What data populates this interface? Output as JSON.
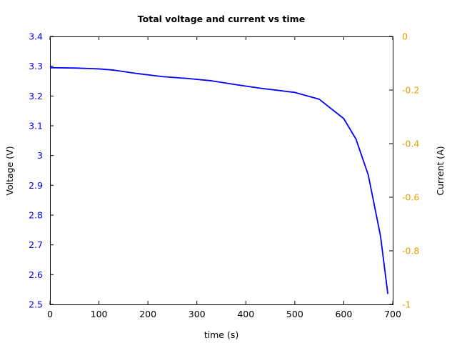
{
  "chart_data": {
    "type": "line",
    "title": "Total voltage and current vs time",
    "xlabel": "time (s)",
    "ylabel_left": "Voltage (V)",
    "ylabel_right": "Current (A)",
    "xlim": [
      0,
      700
    ],
    "ylim_left": [
      2.5,
      3.4
    ],
    "ylim_right": [
      -1,
      0
    ],
    "x_ticks": [
      "0",
      "100",
      "200",
      "300",
      "400",
      "500",
      "600",
      "700"
    ],
    "y_left_ticks": [
      "2.5",
      "2.6",
      "2.7",
      "2.8",
      "2.9",
      "3",
      "3.1",
      "3.2",
      "3.3",
      "3.4"
    ],
    "y_right_ticks": [
      "-1",
      "-0.8",
      "-0.6",
      "-0.4",
      "-0.2",
      "0"
    ],
    "grid": false,
    "colors": {
      "voltage": "#0000ff",
      "current": "#e69f00",
      "axes": "#000000"
    },
    "series": [
      {
        "axis": "left",
        "x": [
          0,
          50,
          100,
          130,
          180,
          230,
          280,
          330,
          380,
          430,
          500,
          550,
          600,
          625,
          650,
          675,
          690
        ],
        "y": [
          3.295,
          3.294,
          3.291,
          3.287,
          3.275,
          3.265,
          3.259,
          3.251,
          3.238,
          3.226,
          3.212,
          3.189,
          3.124,
          3.055,
          2.935,
          2.73,
          2.535
        ]
      },
      {
        "axis": "left",
        "x": [
          0,
          3
        ],
        "y": [
          3.3,
          3.298
        ]
      }
    ]
  }
}
